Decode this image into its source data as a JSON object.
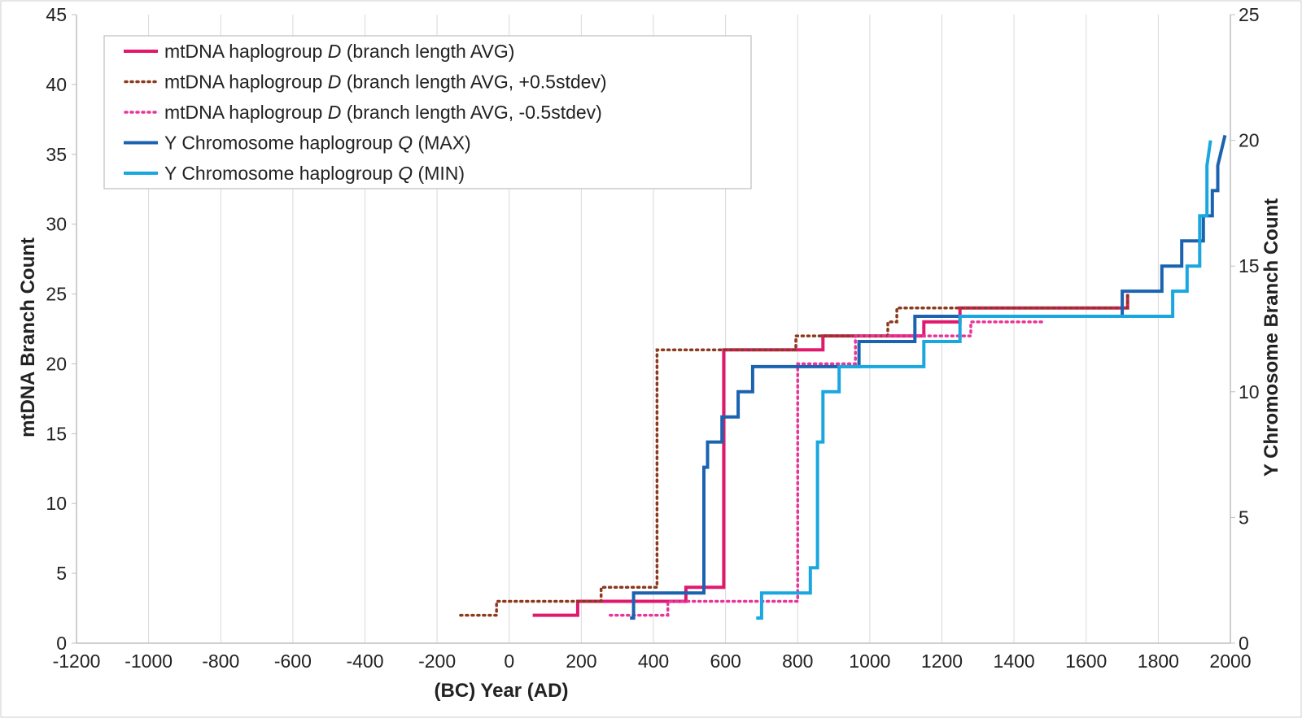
{
  "chart_data": {
    "type": "line",
    "title": "",
    "xlabel": "(BC) Year (AD)",
    "ylabel": "mtDNA Branch Count",
    "y2label": "Y Chromosome  Branch Count",
    "xlim": [
      -1200,
      2000
    ],
    "ylim": [
      0,
      45
    ],
    "y2lim": [
      0,
      25
    ],
    "xticks": [
      -1200,
      -1000,
      -800,
      -600,
      -400,
      -200,
      0,
      200,
      400,
      600,
      800,
      1000,
      1200,
      1400,
      1600,
      1800,
      2000
    ],
    "yticks": [
      0,
      5,
      10,
      15,
      20,
      25,
      30,
      35,
      40,
      45
    ],
    "y2ticks": [
      0,
      5,
      10,
      15,
      20,
      25
    ],
    "grid": "vertical",
    "legend_position": "top-left",
    "series": [
      {
        "name": "mtDNA haplogroup D (branch length AVG)",
        "prefix": "mtDNA haplogroup ",
        "italic": "D",
        "suffix": " (branch length AVG)",
        "axis": "left",
        "color": "#e0196e",
        "dash": "solid",
        "x": [
          65,
          190,
          190,
          490,
          490,
          595,
          595,
          870,
          870,
          1150,
          1150,
          1250,
          1250,
          1715,
          1715
        ],
        "y": [
          2,
          2,
          3,
          3,
          4,
          4,
          21,
          21,
          22,
          22,
          23,
          23,
          24,
          24,
          25
        ]
      },
      {
        "name": "mtDNA haplogroup D (branch length AVG, +0.5stdev)",
        "prefix": "mtDNA haplogroup ",
        "italic": "D",
        "suffix": " (branch length AVG, +0.5stdev)",
        "axis": "left",
        "color": "#8b3a1e",
        "dash": "dotted",
        "x": [
          -135,
          -35,
          -35,
          255,
          255,
          410,
          410,
          795,
          795,
          870,
          870,
          1050,
          1050,
          1075,
          1075,
          1715,
          1715
        ],
        "y": [
          2,
          2,
          3,
          3,
          4,
          4,
          21,
          21,
          22,
          22,
          22,
          22,
          23,
          23,
          24,
          24,
          25
        ]
      },
      {
        "name": "mtDNA haplogroup D (branch length AVG, -0.5stdev)",
        "prefix": "mtDNA haplogroup ",
        "italic": "D",
        "suffix": " (branch length AVG, -0.5stdev)",
        "axis": "left",
        "color": "#e8359a",
        "dash": "dotted",
        "x": [
          280,
          345,
          345,
          440,
          440,
          800,
          800,
          960,
          960,
          1190,
          1190,
          1280,
          1280,
          1480
        ],
        "y": [
          2,
          2,
          2,
          2,
          3,
          3,
          20,
          20,
          22,
          22,
          22,
          22,
          23,
          23
        ]
      },
      {
        "name": "Y Chromosome haplogroup Q (MAX)",
        "prefix": "Y Chromosome haplogroup ",
        "italic": "Q",
        "suffix": " (MAX)",
        "axis": "right",
        "color": "#1b63b0",
        "dash": "solid",
        "x": [
          335,
          345,
          345,
          540,
          540,
          550,
          550,
          590,
          590,
          635,
          635,
          675,
          675,
          970,
          970,
          1125,
          1125,
          1700,
          1700,
          1810,
          1810,
          1865,
          1865,
          1925,
          1925,
          1950,
          1950,
          1965,
          1965,
          1985
        ],
        "y": [
          1,
          1,
          2,
          2,
          7,
          7,
          8,
          8,
          9,
          9,
          10,
          10,
          11,
          11,
          12,
          12,
          13,
          13,
          14,
          14,
          15,
          15,
          16,
          16,
          17,
          17,
          18,
          18,
          19,
          20.2
        ]
      },
      {
        "name": "Y Chromosome haplogroup Q (MIN)",
        "prefix": "Y Chromosome haplogroup ",
        "italic": "Q",
        "suffix": " (MIN)",
        "axis": "right",
        "color": "#1aa7e0",
        "dash": "solid",
        "x": [
          685,
          700,
          700,
          835,
          835,
          855,
          855,
          870,
          870,
          915,
          915,
          1150,
          1150,
          1250,
          1250,
          1840,
          1840,
          1880,
          1880,
          1915,
          1915,
          1935,
          1935,
          1945
        ],
        "y": [
          1,
          1,
          2,
          2,
          3,
          3,
          8,
          8,
          10,
          10,
          11,
          11,
          12,
          12,
          13,
          13,
          14,
          14,
          15,
          15,
          17,
          17,
          19,
          20
        ]
      }
    ]
  }
}
